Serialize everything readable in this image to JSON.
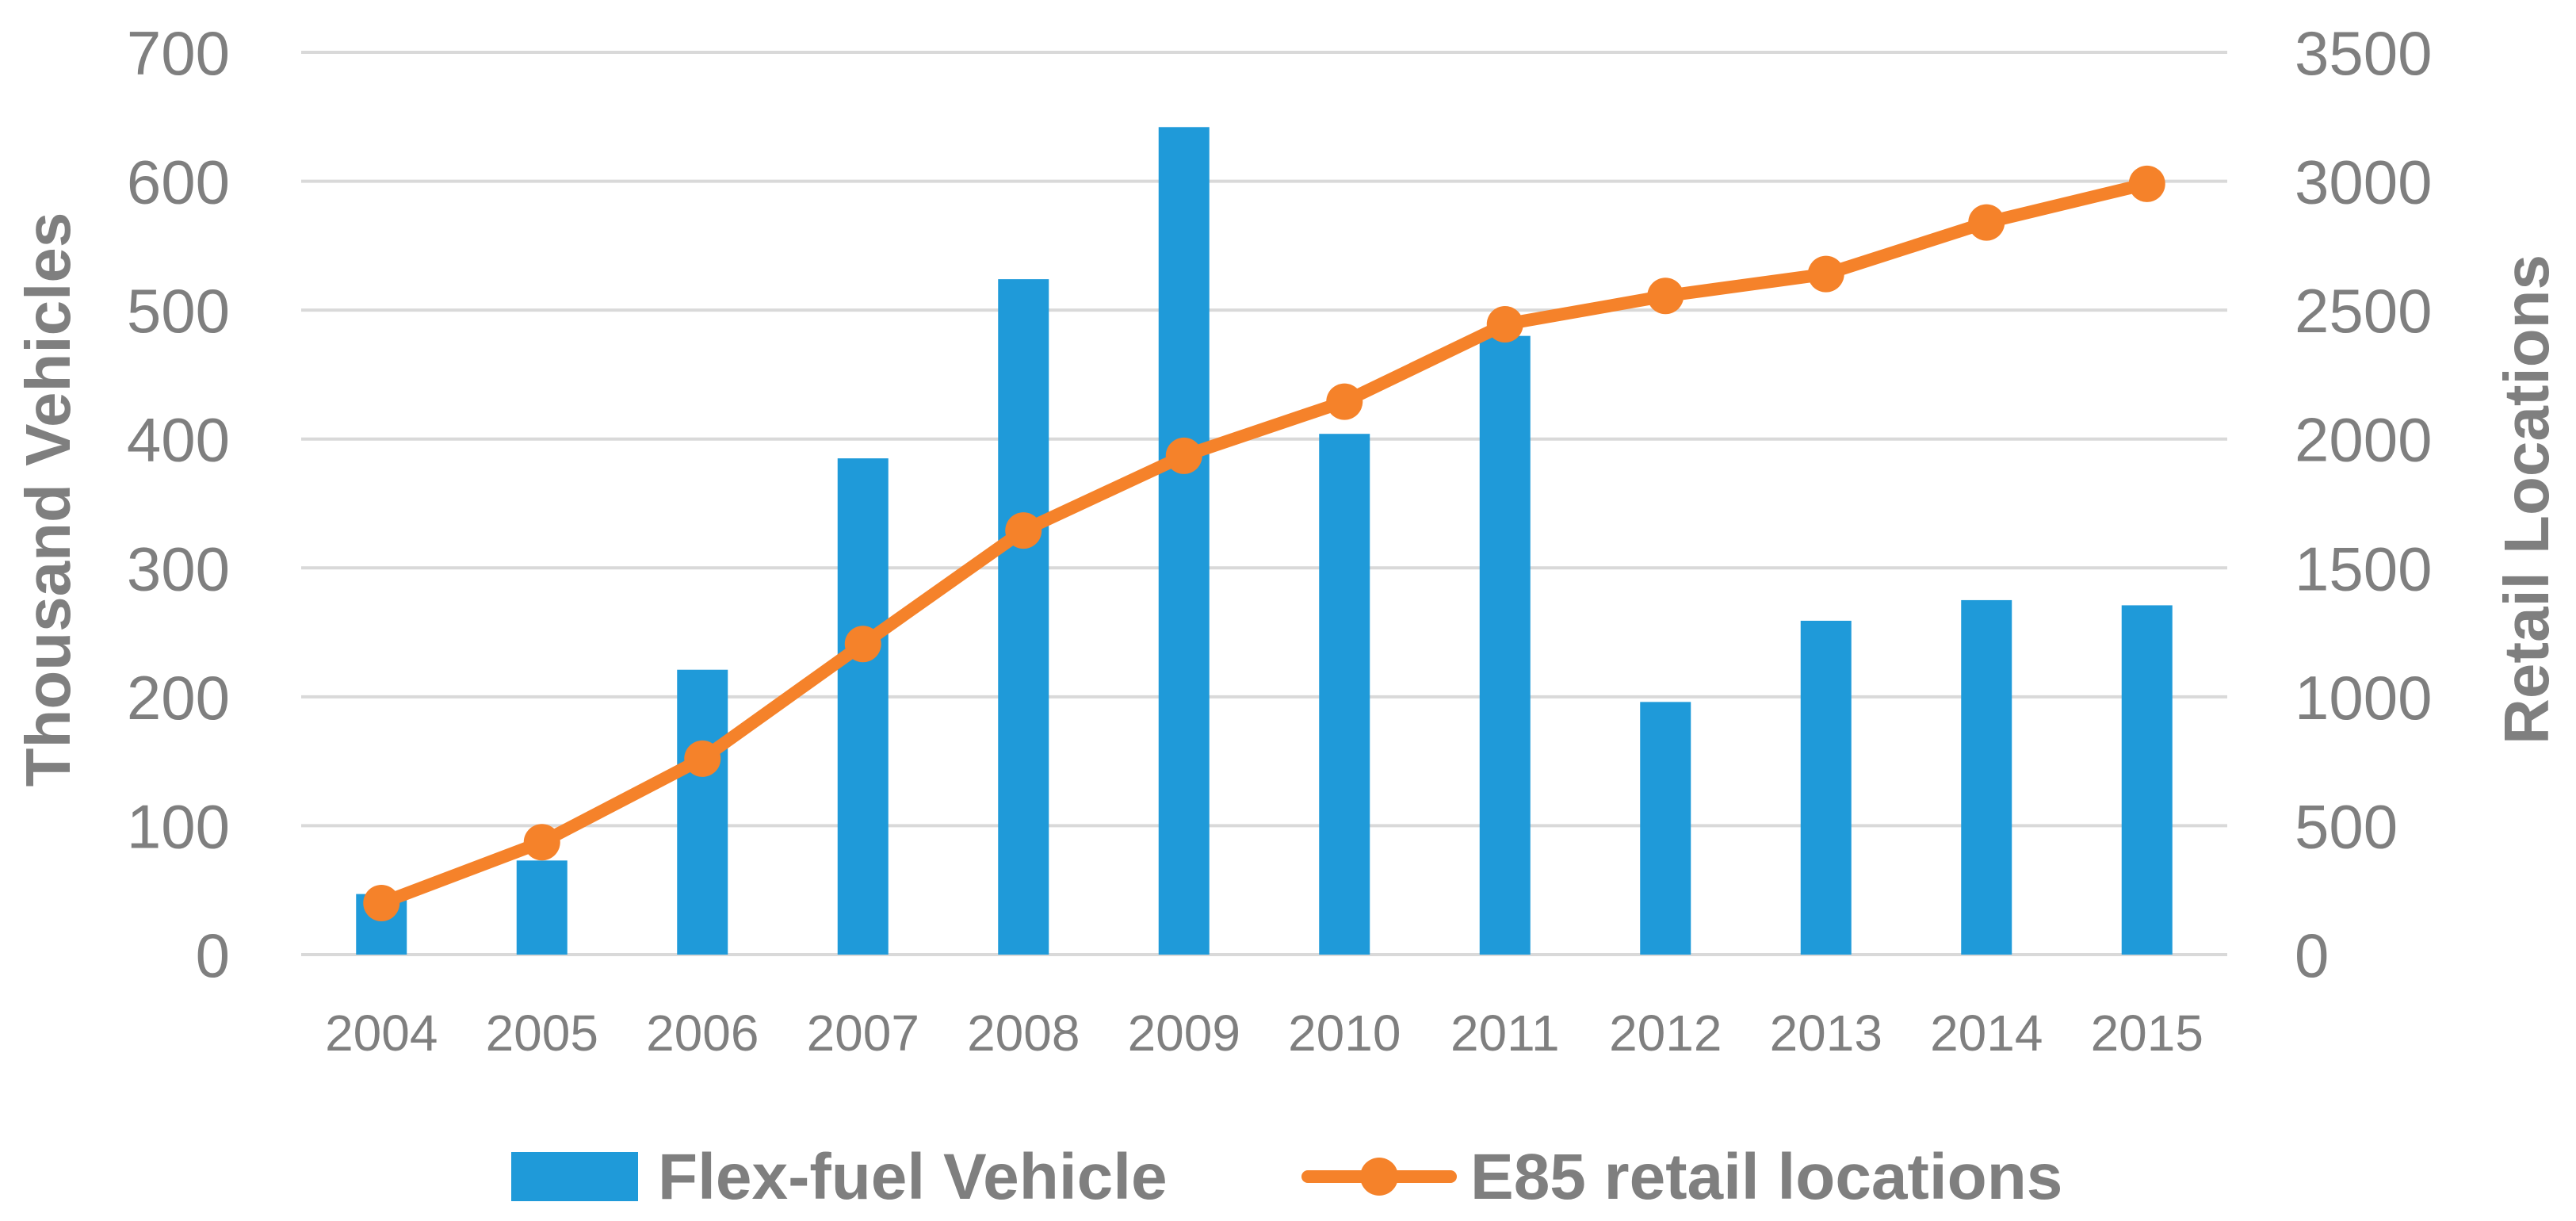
{
  "chart_data": {
    "type": "bar+line",
    "categories": [
      "2004",
      "2005",
      "2006",
      "2007",
      "2008",
      "2009",
      "2010",
      "2011",
      "2012",
      "2013",
      "2014",
      "2015"
    ],
    "series": [
      {
        "name": "Flex-fuel Vehicle",
        "type": "bar",
        "axis": "left",
        "color": "#1f9ad9",
        "values": [
          47,
          73,
          221,
          385,
          524,
          642,
          404,
          480,
          196,
          259,
          275,
          271
        ]
      },
      {
        "name": "E85 retail locations",
        "type": "line",
        "axis": "right",
        "color": "#f5822a",
        "values": [
          200,
          436,
          760,
          1205,
          1645,
          1935,
          2145,
          2445,
          2555,
          2640,
          2840,
          2990
        ]
      }
    ],
    "ylabel": "Thousand Vehicles",
    "ylabel_right": "Retail Locations",
    "ylim": [
      0,
      700
    ],
    "ylim_right": [
      0,
      3500
    ],
    "yticks": [
      "0",
      "100",
      "200",
      "300",
      "400",
      "500",
      "600",
      "700"
    ],
    "yticks_right": [
      "0",
      "500",
      "1000",
      "1500",
      "2000",
      "2500",
      "3000",
      "3500"
    ],
    "grid": true,
    "legend_position": "bottom"
  }
}
